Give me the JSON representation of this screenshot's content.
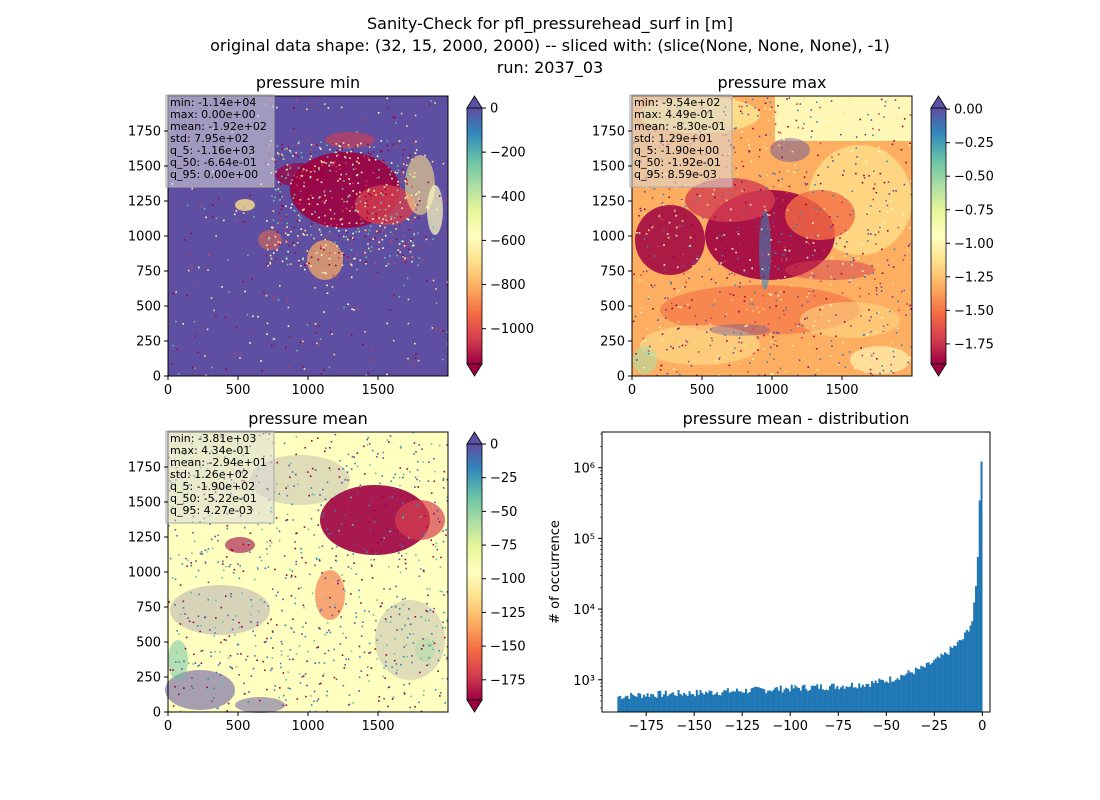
{
  "suptitle": {
    "line1": "Sanity-Check for pfl_pressurehead_surf in [m]",
    "line2": "original data shape: (32, 15, 2000, 2000) -- sliced with: (slice(None, None, None), -1)",
    "line3": "run: 2037_03"
  },
  "chart_data": [
    {
      "type": "heatmap",
      "title": "pressure min",
      "xticks": [
        "0",
        "500",
        "1000",
        "1500"
      ],
      "yticks": [
        "0",
        "250",
        "500",
        "750",
        "1000",
        "1250",
        "1500",
        "1750"
      ],
      "xlim": [
        0,
        2000
      ],
      "ylim": [
        0,
        2000
      ],
      "colormap": "Spectral",
      "colorbar": {
        "min": -1160,
        "max": 0,
        "ticks": [
          "0",
          "−200",
          "−400",
          "−600",
          "−800",
          "−1000"
        ],
        "extend": "both"
      },
      "stats": [
        "min: -1.14e+04",
        "max: 0.00e+00",
        "mean: -1.92e+02",
        "std: 7.95e+02",
        "q_5: -1.16e+03",
        "q_50: -6.64e-01",
        "q_95: 0.00e+00"
      ]
    },
    {
      "type": "heatmap",
      "title": "pressure max",
      "xticks": [
        "0",
        "500",
        "1000",
        "1500"
      ],
      "yticks": [
        "0",
        "250",
        "500",
        "750",
        "1000",
        "1250",
        "1500",
        "1750"
      ],
      "xlim": [
        0,
        2000
      ],
      "ylim": [
        0,
        2000
      ],
      "colormap": "Spectral",
      "colorbar": {
        "min": -1.9,
        "max": 0.0086,
        "ticks": [
          "0.00",
          "−0.25",
          "−0.50",
          "−0.75",
          "−1.00",
          "−1.25",
          "−1.50",
          "−1.75"
        ],
        "extend": "both"
      },
      "stats": [
        "min: -9.54e+02",
        "max: 4.49e-01",
        "mean: -8.30e-01",
        "std: 1.29e+01",
        "q_5: -1.90e+00",
        "q_50: -1.92e-01",
        "q_95: 8.59e-03"
      ]
    },
    {
      "type": "heatmap",
      "title": "pressure mean",
      "xticks": [
        "0",
        "500",
        "1000",
        "1500"
      ],
      "yticks": [
        "0",
        "250",
        "500",
        "750",
        "1000",
        "1250",
        "1500",
        "1750"
      ],
      "xlim": [
        0,
        2000
      ],
      "ylim": [
        0,
        2000
      ],
      "colormap": "Spectral",
      "colorbar": {
        "min": -190,
        "max": 0.0043,
        "ticks": [
          "0",
          "−25",
          "−50",
          "−75",
          "−100",
          "−125",
          "−150",
          "−175"
        ],
        "extend": "both"
      },
      "stats": [
        "min: -3.81e+03",
        "max: 4.34e-01",
        "mean: -2.94e+01",
        "std: 1.26e+02",
        "q_5: -1.90e+02",
        "q_50: -5.22e-01",
        "q_95: 4.27e-03"
      ]
    },
    {
      "type": "bar",
      "title": "pressure mean - distribution",
      "ylabel": "# of occurrence",
      "xlabel": "",
      "yscale": "log",
      "xlim": [
        -198,
        4
      ],
      "ylim": [
        350,
        3200000
      ],
      "xticks": [
        "−175",
        "−150",
        "−125",
        "−100",
        "−75",
        "−50",
        "−25",
        "0"
      ],
      "xtick_values": [
        -175,
        -150,
        -125,
        -100,
        -75,
        -50,
        -25,
        0
      ],
      "yticks": [
        "10³",
        "10⁴",
        "10⁵",
        "10⁶"
      ],
      "ytick_values": [
        1000,
        10000,
        100000,
        1000000
      ],
      "bar_color": "#1f77b4",
      "bin_range": [
        -190,
        0
      ],
      "bins": 200,
      "anchor_counts": [
        [
          -190,
          580
        ],
        [
          -175,
          620
        ],
        [
          -150,
          650
        ],
        [
          -125,
          700
        ],
        [
          -100,
          760
        ],
        [
          -75,
          820
        ],
        [
          -60,
          880
        ],
        [
          -50,
          980
        ],
        [
          -40,
          1200
        ],
        [
          -30,
          1500
        ],
        [
          -20,
          2200
        ],
        [
          -10,
          3800
        ],
        [
          -5,
          7000
        ],
        [
          -3,
          25000
        ],
        [
          -2,
          100000
        ],
        [
          -1,
          800000
        ],
        [
          0,
          2100000
        ]
      ]
    }
  ]
}
